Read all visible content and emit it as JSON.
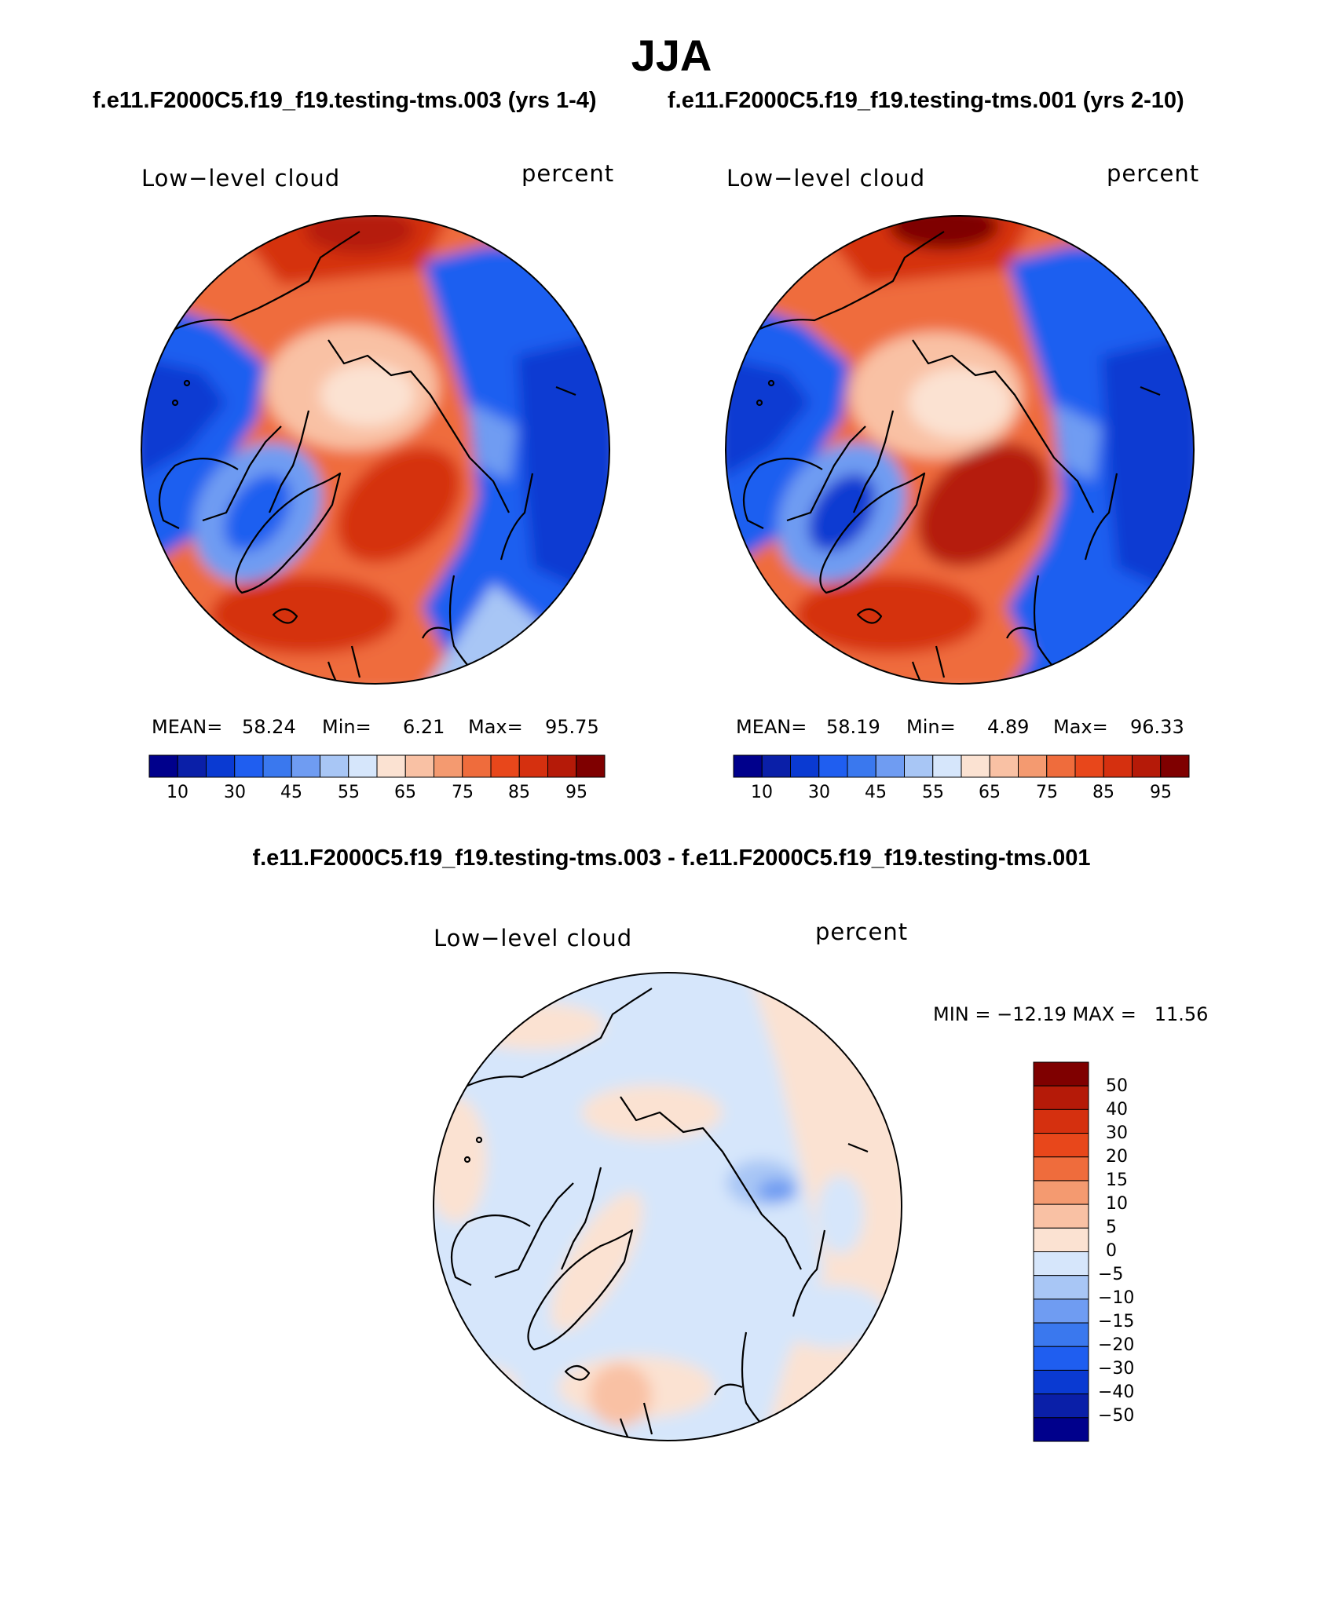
{
  "chart_data": [
    {
      "type": "heatmap",
      "projection": "north-polar-stereographic",
      "run_title": "f.e11.F2000C5.f19_f19.testing-tms.003 (yrs 1-4)",
      "variable": "Low−level cloud",
      "units": "percent",
      "stats": {
        "mean_label": "MEAN=",
        "mean": "58.24",
        "min_label": "Min=",
        "min": "6.21",
        "max_label": "Max=",
        "max": "95.75"
      },
      "colorbar_ticks": [
        "10",
        "30",
        "45",
        "55",
        "65",
        "75",
        "85",
        "95"
      ]
    },
    {
      "type": "heatmap",
      "projection": "north-polar-stereographic",
      "run_title": "f.e11.F2000C5.f19_f19.testing-tms.001 (yrs 2-10)",
      "variable": "Low−level cloud",
      "units": "percent",
      "stats": {
        "mean_label": "MEAN=",
        "mean": "58.19",
        "min_label": "Min=",
        "min": "4.89",
        "max_label": "Max=",
        "max": "96.33"
      },
      "colorbar_ticks": [
        "10",
        "30",
        "45",
        "55",
        "65",
        "75",
        "85",
        "95"
      ]
    },
    {
      "type": "heatmap",
      "projection": "north-polar-stereographic",
      "diff_title": "f.e11.F2000C5.f19_f19.testing-tms.003 - f.e11.F2000C5.f19_f19.testing-tms.001",
      "variable": "Low−level cloud",
      "units": "percent",
      "stats": {
        "text": "MIN = −12.19 MAX =   11.56"
      },
      "colorbar_ticks": [
        "50",
        "40",
        "30",
        "20",
        "15",
        "10",
        "5",
        "0",
        "−5",
        "−10",
        "−15",
        "−20",
        "−30",
        "−40",
        "−50"
      ]
    }
  ],
  "figure": {
    "title": "JJA"
  },
  "colors": {
    "scale": [
      "#00008c",
      "#0a1fa8",
      "#0a3ad2",
      "#1f5ef0",
      "#3a78ee",
      "#6f9cf2",
      "#a8c6f5",
      "#d6e6fb",
      "#fbe2d2",
      "#f9c1a4",
      "#f49a70",
      "#ef6c3c",
      "#e8471b",
      "#d5300f",
      "#b51a08",
      "#7f0000"
    ],
    "diff_scale": [
      "#7f0000",
      "#b51a08",
      "#d5300f",
      "#e8471b",
      "#ef6c3c",
      "#f49a70",
      "#f9c1a4",
      "#fbe2d2",
      "#d6e6fb",
      "#a8c6f5",
      "#6f9cf2",
      "#3a78ee",
      "#1f5ef0",
      "#0a3ad2",
      "#0a1fa8",
      "#00008c"
    ]
  }
}
